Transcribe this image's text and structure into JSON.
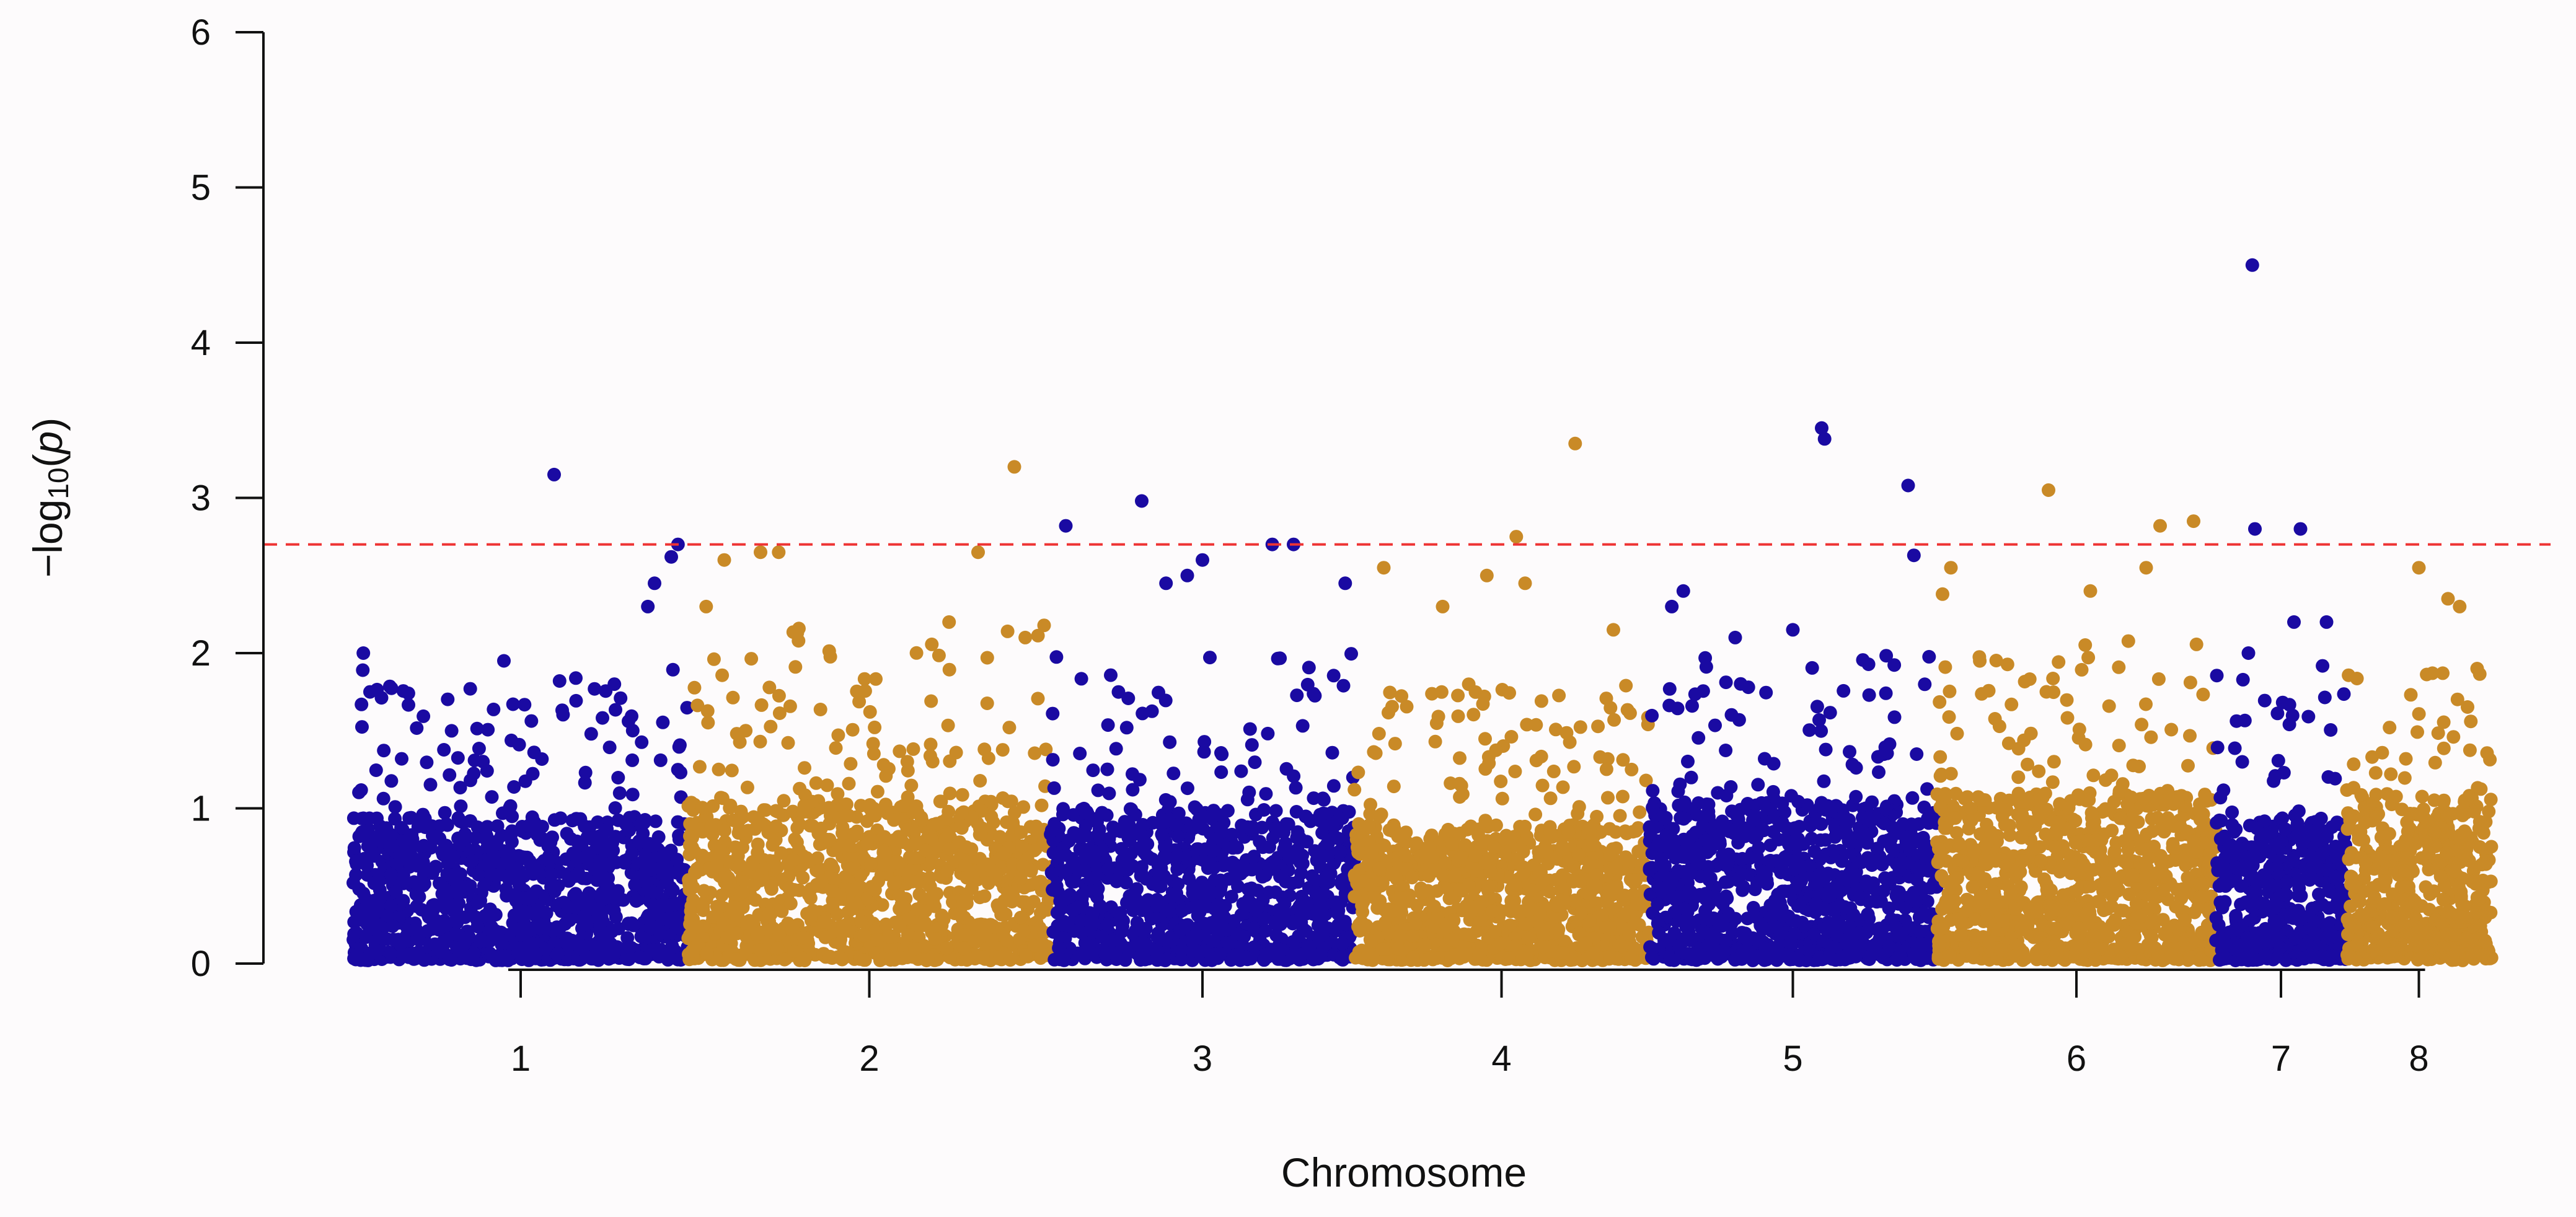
{
  "chart_data": {
    "type": "scatter",
    "subtype": "manhattan",
    "title": "",
    "xlabel": "Chromosome",
    "ylabel": {
      "prefix": "−log",
      "subscript": "10",
      "open": "(",
      "var": "p",
      "close": ")"
    },
    "ylim": [
      0,
      6
    ],
    "yticks": [
      0,
      1,
      2,
      3,
      4,
      5,
      6
    ],
    "grid": false,
    "legend": "none",
    "threshold": {
      "value": 2.7,
      "style": "dashed",
      "color": "#ee3333"
    },
    "colors": {
      "odd": "#1a0aa2",
      "even": "#c98a27",
      "background": "#fdfbfc"
    },
    "chromosomes": [
      {
        "label": "1",
        "density": 1150,
        "color": "odd",
        "bulk": 0.95,
        "upper": 1.9,
        "top_hits": [
          {
            "pos": 0.0,
            "value": 0.52
          },
          {
            "pos": 0.03,
            "value": 2.0
          },
          {
            "pos": 0.05,
            "value": 1.75
          },
          {
            "pos": 0.45,
            "value": 1.95
          },
          {
            "pos": 0.6,
            "value": 3.15
          },
          {
            "pos": 0.78,
            "value": 1.8
          },
          {
            "pos": 0.88,
            "value": 2.3
          },
          {
            "pos": 0.9,
            "value": 2.45
          },
          {
            "pos": 0.95,
            "value": 2.62
          },
          {
            "pos": 0.97,
            "value": 2.7
          }
        ]
      },
      {
        "label": "2",
        "density": 1250,
        "color": "even",
        "bulk": 1.05,
        "upper": 2.2,
        "top_hits": [
          {
            "pos": 0.05,
            "value": 2.3
          },
          {
            "pos": 0.1,
            "value": 2.6
          },
          {
            "pos": 0.2,
            "value": 2.65
          },
          {
            "pos": 0.25,
            "value": 2.65
          },
          {
            "pos": 0.72,
            "value": 2.2
          },
          {
            "pos": 0.8,
            "value": 2.65
          },
          {
            "pos": 0.9,
            "value": 3.2
          },
          {
            "pos": 0.93,
            "value": 2.1
          }
        ]
      },
      {
        "label": "3",
        "density": 1000,
        "color": "odd",
        "bulk": 1.0,
        "upper": 2.0,
        "top_hits": [
          {
            "pos": 0.05,
            "value": 2.82
          },
          {
            "pos": 0.3,
            "value": 2.98
          },
          {
            "pos": 0.38,
            "value": 2.45
          },
          {
            "pos": 0.45,
            "value": 2.5
          },
          {
            "pos": 0.5,
            "value": 2.6
          },
          {
            "pos": 0.73,
            "value": 2.7
          },
          {
            "pos": 0.8,
            "value": 2.7
          },
          {
            "pos": 0.97,
            "value": 2.45
          }
        ]
      },
      {
        "label": "4",
        "density": 1150,
        "color": "even",
        "bulk": 0.9,
        "upper": 1.8,
        "top_hits": [
          {
            "pos": 0.1,
            "value": 2.55
          },
          {
            "pos": 0.3,
            "value": 2.3
          },
          {
            "pos": 0.45,
            "value": 2.5
          },
          {
            "pos": 0.55,
            "value": 2.75
          },
          {
            "pos": 0.58,
            "value": 2.45
          },
          {
            "pos": 0.75,
            "value": 3.35
          },
          {
            "pos": 0.88,
            "value": 2.15
          }
        ]
      },
      {
        "label": "5",
        "density": 1050,
        "color": "odd",
        "bulk": 1.05,
        "upper": 2.0,
        "top_hits": [
          {
            "pos": 0.08,
            "value": 2.3
          },
          {
            "pos": 0.12,
            "value": 2.4
          },
          {
            "pos": 0.3,
            "value": 2.1
          },
          {
            "pos": 0.5,
            "value": 2.15
          },
          {
            "pos": 0.6,
            "value": 3.45
          },
          {
            "pos": 0.61,
            "value": 3.38
          },
          {
            "pos": 0.9,
            "value": 3.08
          },
          {
            "pos": 0.92,
            "value": 2.63
          }
        ]
      },
      {
        "label": "6",
        "density": 1050,
        "color": "even",
        "bulk": 1.1,
        "upper": 2.1,
        "top_hits": [
          {
            "pos": 0.05,
            "value": 2.55
          },
          {
            "pos": 0.02,
            "value": 2.38
          },
          {
            "pos": 0.4,
            "value": 3.05
          },
          {
            "pos": 0.55,
            "value": 2.4
          },
          {
            "pos": 0.75,
            "value": 2.55
          },
          {
            "pos": 0.8,
            "value": 2.82
          },
          {
            "pos": 0.92,
            "value": 2.85
          }
        ]
      },
      {
        "label": "7",
        "density": 500,
        "color": "odd",
        "bulk": 0.95,
        "upper": 2.0,
        "top_hits": [
          {
            "pos": 0.25,
            "value": 2.0
          },
          {
            "pos": 0.28,
            "value": 4.5
          },
          {
            "pos": 0.3,
            "value": 2.8
          },
          {
            "pos": 0.65,
            "value": 2.8
          },
          {
            "pos": 0.6,
            "value": 2.2
          },
          {
            "pos": 0.85,
            "value": 2.2
          }
        ]
      },
      {
        "label": "8",
        "density": 550,
        "color": "even",
        "bulk": 1.1,
        "upper": 1.9,
        "top_hits": [
          {
            "pos": 0.5,
            "value": 2.55
          },
          {
            "pos": 0.7,
            "value": 2.35
          },
          {
            "pos": 0.78,
            "value": 2.3
          },
          {
            "pos": 0.9,
            "value": 1.9
          }
        ]
      }
    ]
  }
}
